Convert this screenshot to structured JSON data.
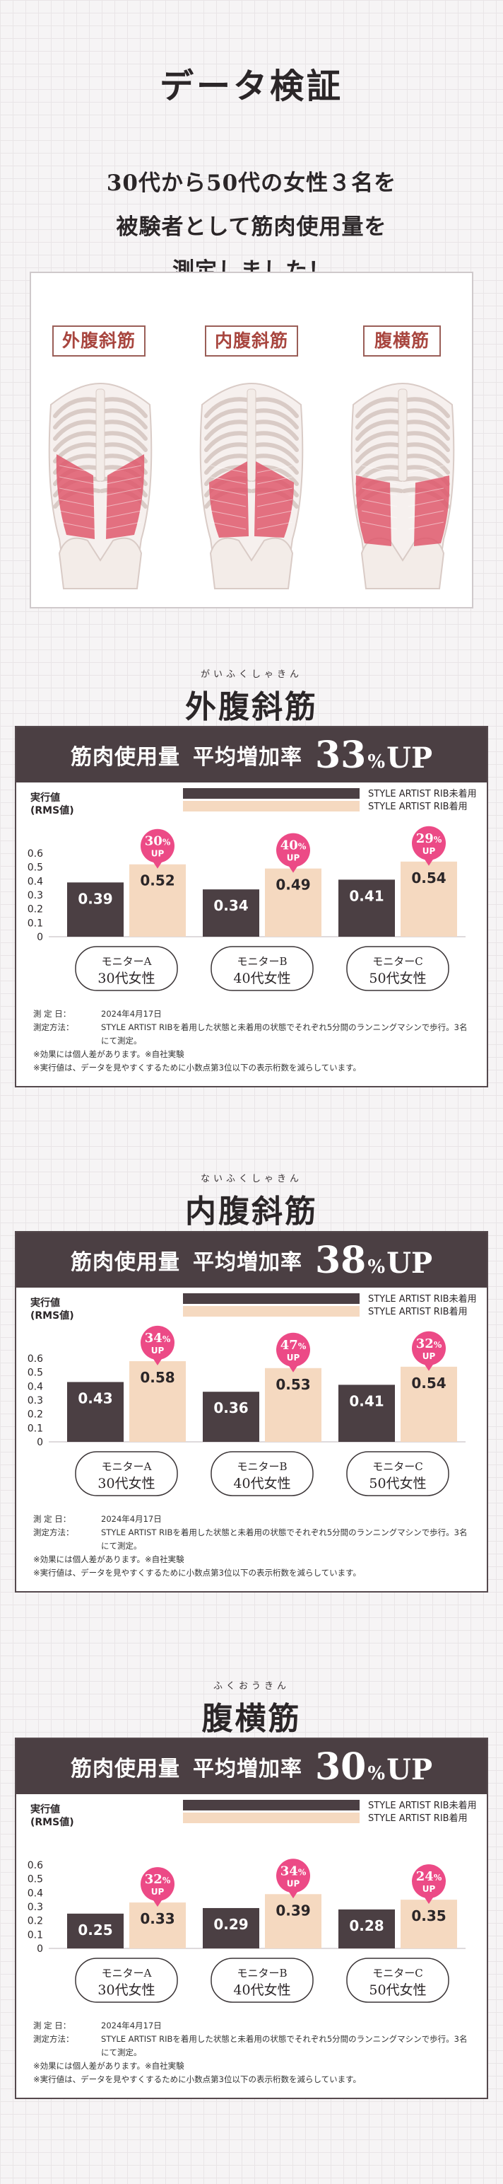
{
  "main_title": "データ検証",
  "intro_lines": [
    "30代から50代の女性３名を",
    "被験者として筋肉使用量を",
    "測定しました！"
  ],
  "muscle_labels": [
    "外腹斜筋",
    "内腹斜筋",
    "腹横筋"
  ],
  "colors": {
    "without": "#4b3f43",
    "with": "#f5d9c0",
    "badge": "#ec4a86",
    "accent_muscle": "#e05a6d"
  },
  "sections": [
    {
      "ruby": "がいふくしゃきん",
      "name": "外腹斜筋",
      "head_label": "筋肉使用量",
      "head_avg_label": "平均増加率",
      "head_value": "33",
      "head_pct": "%",
      "head_up": "UP"
    },
    {
      "ruby": "ないふくしゃきん",
      "name": "内腹斜筋",
      "head_label": "筋肉使用量",
      "head_avg_label": "平均増加率",
      "head_value": "38",
      "head_pct": "%",
      "head_up": "UP"
    },
    {
      "ruby": "ふくおうきん",
      "name": "腹横筋",
      "head_label": "筋肉使用量",
      "head_avg_label": "平均増加率",
      "head_value": "30",
      "head_pct": "%",
      "head_up": "UP"
    }
  ],
  "chart_data": [
    {
      "type": "bar",
      "title": "外腹斜筋",
      "ylabel": "実行値\n(RMS値)",
      "ylim": [
        0,
        0.6
      ],
      "yticks": [
        "0.6",
        "0.5",
        "0.4",
        "0.3",
        "0.2",
        "0.1",
        "0"
      ],
      "categories": [
        "モニターA 30代女性",
        "モニターB 40代女性",
        "モニターC 50代女性"
      ],
      "monitor_names": [
        "モニターA",
        "モニターB",
        "モニターC"
      ],
      "monitor_ages": [
        "30代女性",
        "40代女性",
        "50代女性"
      ],
      "series": [
        {
          "name": "STYLE ARTIST RIB未着用",
          "values": [
            0.39,
            0.34,
            0.41
          ],
          "labels": [
            "0.39",
            "0.34",
            "0.41"
          ]
        },
        {
          "name": "STYLE ARTIST RIB着用",
          "values": [
            0.52,
            0.49,
            0.54
          ],
          "labels": [
            "0.52",
            "0.49",
            "0.54"
          ]
        }
      ],
      "badges": [
        "30",
        "40",
        "29"
      ],
      "badge_pct": "%",
      "badge_up": "UP",
      "grid": false,
      "legend": "top"
    },
    {
      "type": "bar",
      "title": "内腹斜筋",
      "ylabel": "実行値\n(RMS値)",
      "ylim": [
        0,
        0.6
      ],
      "yticks": [
        "0.6",
        "0.5",
        "0.4",
        "0.3",
        "0.2",
        "0.1",
        "0"
      ],
      "categories": [
        "モニターA 30代女性",
        "モニターB 40代女性",
        "モニターC 50代女性"
      ],
      "monitor_names": [
        "モニターA",
        "モニターB",
        "モニターC"
      ],
      "monitor_ages": [
        "30代女性",
        "40代女性",
        "50代女性"
      ],
      "series": [
        {
          "name": "STYLE ARTIST RIB未着用",
          "values": [
            0.43,
            0.36,
            0.41
          ],
          "labels": [
            "0.43",
            "0.36",
            "0.41"
          ]
        },
        {
          "name": "STYLE ARTIST RIB着用",
          "values": [
            0.58,
            0.53,
            0.54
          ],
          "labels": [
            "0.58",
            "0.53",
            "0.54"
          ]
        }
      ],
      "badges": [
        "34",
        "47",
        "32"
      ],
      "badge_pct": "%",
      "badge_up": "UP",
      "grid": false,
      "legend": "top"
    },
    {
      "type": "bar",
      "title": "腹横筋",
      "ylabel": "実行値\n(RMS値)",
      "ylim": [
        0,
        0.6
      ],
      "yticks": [
        "0.6",
        "0.5",
        "0.4",
        "0.3",
        "0.2",
        "0.1",
        "0"
      ],
      "categories": [
        "モニターA 30代女性",
        "モニターB 40代女性",
        "モニターC 50代女性"
      ],
      "monitor_names": [
        "モニターA",
        "モニターB",
        "モニターC"
      ],
      "monitor_ages": [
        "30代女性",
        "40代女性",
        "50代女性"
      ],
      "series": [
        {
          "name": "STYLE ARTIST RIB未着用",
          "values": [
            0.25,
            0.29,
            0.28
          ],
          "labels": [
            "0.25",
            "0.29",
            "0.28"
          ]
        },
        {
          "name": "STYLE ARTIST RIB着用",
          "values": [
            0.33,
            0.39,
            0.35
          ],
          "labels": [
            "0.33",
            "0.39",
            "0.35"
          ]
        }
      ],
      "badges": [
        "32",
        "34",
        "24"
      ],
      "badge_pct": "%",
      "badge_up": "UP",
      "grid": false,
      "legend": "top"
    }
  ],
  "notes": {
    "date_key": "測 定 日：",
    "date_val": "2024年4月17日",
    "method_key": "測定方法：",
    "method_val": "STYLE ARTIST RIBを着用した状態と未着用の状態でそれぞれ5分間のランニングマシンで歩行。3名にて測定。",
    "effect": "※効果には個人差があります。※自社実験",
    "rounding": "※実行値は、データを見やすくするために小数点第3位以下の表示桁数を減らしています。"
  }
}
